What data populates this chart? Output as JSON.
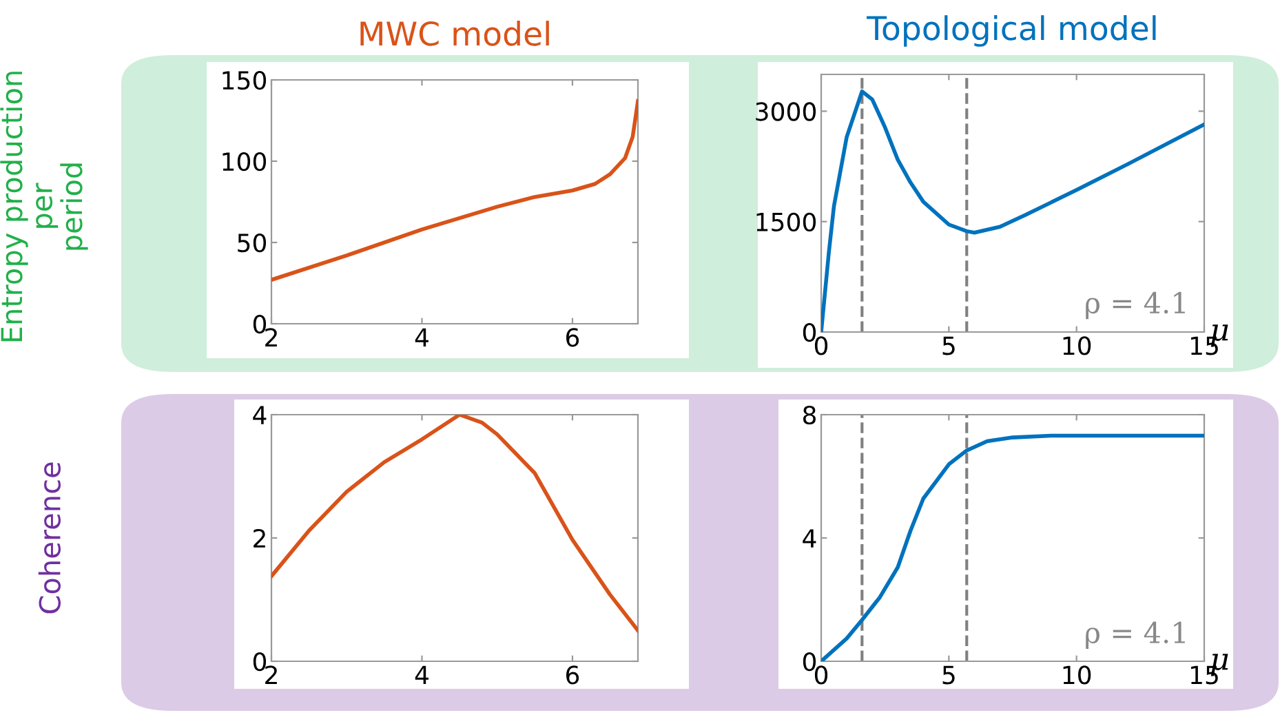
{
  "chart_data": [
    {
      "type": "line",
      "title": "MWC model",
      "ylabel": "Entropy production per period",
      "xlim": [
        2,
        6.87
      ],
      "xticks": [
        2,
        4,
        6
      ],
      "ylim": [
        0,
        150
      ],
      "yticks": [
        0,
        50,
        100,
        150
      ],
      "grid": false,
      "legend": false,
      "marker": "none",
      "line_style": "solid",
      "series": [
        {
          "color": "#d95319",
          "x": [
            2,
            3,
            4,
            5,
            5.5,
            6,
            6.3,
            6.5,
            6.7,
            6.8,
            6.87
          ],
          "values": [
            27,
            42,
            58,
            72,
            78,
            82,
            86,
            92,
            102,
            115,
            137
          ]
        }
      ]
    },
    {
      "type": "line",
      "title": "Topological model",
      "xlabel": "μ",
      "xlim": [
        0,
        15
      ],
      "xticks": [
        0,
        5,
        10,
        15
      ],
      "ylim": [
        0,
        3500
      ],
      "yticks": [
        0,
        1500,
        3000
      ],
      "grid": false,
      "legend": false,
      "marker": "none",
      "line_style": "solid",
      "annotations": [
        "ρ = 4.1"
      ],
      "ref_lines": [
        {
          "axis": "x",
          "value": 1.6,
          "color": "#808080",
          "line_style": "dashed"
        },
        {
          "axis": "x",
          "value": 5.7,
          "color": "#808080",
          "line_style": "dashed"
        }
      ],
      "series": [
        {
          "color": "#0072bd",
          "x": [
            0,
            0.3,
            0.5,
            1,
            1.6,
            2,
            2.5,
            3,
            3.5,
            4,
            5,
            5.7,
            6,
            7,
            8,
            10,
            12,
            15
          ],
          "values": [
            0,
            1080,
            1710,
            2650,
            3270,
            3160,
            2780,
            2340,
            2030,
            1770,
            1460,
            1370,
            1350,
            1430,
            1590,
            1930,
            2280,
            2820
          ]
        }
      ]
    },
    {
      "type": "line",
      "ylabel": "Coherence",
      "xlim": [
        2,
        6.87
      ],
      "xticks": [
        2,
        4,
        6
      ],
      "ylim": [
        0,
        4
      ],
      "yticks": [
        0,
        2,
        4
      ],
      "grid": false,
      "legend": false,
      "marker": "none",
      "line_style": "solid",
      "series": [
        {
          "color": "#d95319",
          "x": [
            2,
            2.5,
            3,
            3.5,
            4,
            4.5,
            4.8,
            5,
            5.5,
            6,
            6.5,
            6.87
          ],
          "values": [
            1.38,
            2.12,
            2.75,
            3.23,
            3.6,
            4.0,
            3.87,
            3.68,
            3.05,
            1.97,
            1.08,
            0.5
          ]
        }
      ]
    },
    {
      "type": "line",
      "xlabel": "μ",
      "xlim": [
        0,
        15
      ],
      "xticks": [
        0,
        5,
        10,
        15
      ],
      "ylim": [
        0,
        8
      ],
      "yticks": [
        0,
        4,
        8
      ],
      "grid": false,
      "legend": false,
      "marker": "none",
      "line_style": "solid",
      "annotations": [
        "ρ = 4.1"
      ],
      "ref_lines": [
        {
          "axis": "x",
          "value": 1.6,
          "color": "#808080",
          "line_style": "dashed"
        },
        {
          "axis": "x",
          "value": 5.7,
          "color": "#808080",
          "line_style": "dashed"
        }
      ],
      "series": [
        {
          "color": "#0072bd",
          "x": [
            0,
            1,
            1.6,
            2.3,
            3,
            3.5,
            4,
            5,
            5.7,
            6.5,
            7.5,
            9,
            15
          ],
          "values": [
            0,
            0.74,
            1.34,
            2.08,
            3.05,
            4.24,
            5.28,
            6.39,
            6.84,
            7.14,
            7.26,
            7.32,
            7.32
          ]
        }
      ]
    }
  ]
}
